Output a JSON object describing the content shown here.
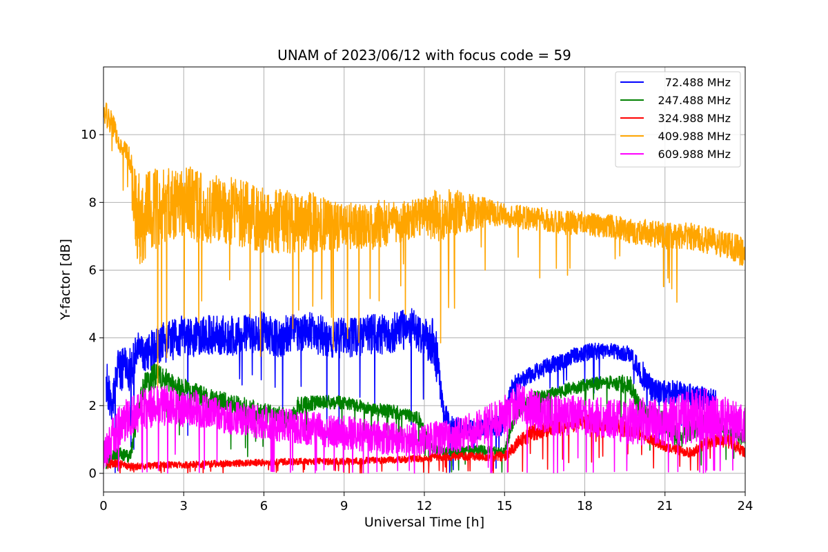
{
  "chart_data": {
    "type": "line",
    "title": "UNAM of 2023/06/12 with focus code = 59",
    "xlabel": "Universal Time [h]",
    "ylabel": "Y-factor [dB]",
    "xlim": [
      0,
      24
    ],
    "ylim": [
      -0.55,
      12
    ],
    "xticks": [
      0,
      3,
      6,
      9,
      12,
      15,
      18,
      21,
      24
    ],
    "yticks": [
      0,
      2,
      4,
      6,
      8,
      10
    ],
    "grid": true,
    "legend_position": "top-right",
    "series": [
      {
        "name": "72.488 MHz",
        "color": "#0000ff",
        "x": [
          0.1,
          0.3,
          0.5,
          0.8,
          1.0,
          1.3,
          1.6,
          2.0,
          2.5,
          3.0,
          3.5,
          4.0,
          4.5,
          5.0,
          5.5,
          6.0,
          6.5,
          7.0,
          7.5,
          8.0,
          8.5,
          9.0,
          9.5,
          10.0,
          10.5,
          11.0,
          11.5,
          12.0,
          12.4,
          12.7,
          13.0,
          13.5,
          14.0,
          14.5,
          14.9,
          15.3,
          15.7,
          16.2,
          16.7,
          17.2,
          17.7,
          18.2,
          18.7,
          19.2,
          19.7,
          20.1,
          20.5,
          21.0,
          21.5,
          22.0,
          22.5,
          22.9
        ],
        "mean": [
          2.6,
          2.0,
          2.9,
          3.2,
          3.0,
          3.7,
          3.5,
          3.8,
          3.9,
          4.1,
          4.0,
          4.1,
          4.1,
          4.0,
          4.1,
          4.2,
          4.0,
          4.1,
          4.2,
          4.1,
          4.0,
          4.0,
          4.0,
          4.1,
          4.1,
          4.2,
          4.3,
          4.1,
          3.8,
          1.8,
          1.4,
          1.3,
          1.3,
          1.4,
          1.4,
          2.6,
          2.8,
          3.0,
          3.2,
          3.3,
          3.5,
          3.6,
          3.6,
          3.6,
          3.5,
          3.0,
          2.5,
          2.4,
          2.4,
          2.3,
          2.2,
          2.1
        ],
        "amp": [
          0.8,
          0.5,
          0.7,
          0.6,
          0.7,
          0.5,
          0.6,
          0.6,
          0.6,
          0.6,
          0.6,
          0.6,
          0.6,
          0.6,
          0.6,
          0.6,
          0.6,
          0.6,
          0.6,
          0.6,
          0.6,
          0.6,
          0.6,
          0.6,
          0.6,
          0.6,
          0.6,
          0.6,
          0.8,
          0.4,
          0.3,
          0.3,
          0.3,
          0.3,
          0.3,
          0.25,
          0.25,
          0.25,
          0.25,
          0.25,
          0.25,
          0.25,
          0.25,
          0.25,
          0.25,
          0.4,
          0.4,
          0.35,
          0.35,
          0.35,
          0.35,
          0.35
        ]
      },
      {
        "name": "247.488 MHz",
        "color": "#008000",
        "x": [
          0.1,
          0.5,
          1.0,
          1.3,
          1.5,
          2.0,
          2.5,
          3.0,
          4.0,
          5.0,
          6.0,
          6.5,
          7.0,
          7.3,
          8.0,
          9.0,
          10.0,
          11.0,
          11.8,
          12.3,
          13.0,
          14.0,
          15.0,
          15.4,
          16.0,
          16.5,
          17.0,
          18.0,
          19.0,
          19.7,
          20.0,
          20.5,
          21.0,
          21.5,
          22.0,
          22.5,
          23.0,
          23.5,
          24.0
        ],
        "mean": [
          0.3,
          0.6,
          0.5,
          1.8,
          2.6,
          2.9,
          2.7,
          2.5,
          2.2,
          2.0,
          1.8,
          1.7,
          1.6,
          2.0,
          2.1,
          2.1,
          1.9,
          1.8,
          1.6,
          0.7,
          0.6,
          0.7,
          0.6,
          1.8,
          2.2,
          2.3,
          2.4,
          2.6,
          2.7,
          2.6,
          2.0,
          1.8,
          1.5,
          1.0,
          1.3,
          1.5,
          1.4,
          1.2,
          1.1
        ],
        "amp": [
          0.2,
          0.2,
          0.2,
          0.3,
          0.4,
          0.4,
          0.3,
          0.3,
          0.3,
          0.3,
          0.3,
          0.3,
          0.3,
          0.3,
          0.2,
          0.2,
          0.2,
          0.2,
          0.2,
          0.15,
          0.15,
          0.15,
          0.15,
          0.3,
          0.2,
          0.2,
          0.2,
          0.2,
          0.2,
          0.3,
          0.3,
          0.3,
          0.3,
          0.3,
          0.3,
          0.3,
          0.3,
          0.3,
          0.3
        ]
      },
      {
        "name": "324.988 MHz",
        "color": "#ff0000",
        "x": [
          0.1,
          0.5,
          1.0,
          1.5,
          2.0,
          3.0,
          4.0,
          5.0,
          6.0,
          7.0,
          8.0,
          9.0,
          10.0,
          11.0,
          12.0,
          13.0,
          14.0,
          15.0,
          15.5,
          16.0,
          17.0,
          18.0,
          19.0,
          20.0,
          21.0,
          21.5,
          22.0,
          22.5,
          23.0,
          23.5,
          24.0
        ],
        "mean": [
          0.25,
          0.3,
          0.2,
          0.2,
          0.25,
          0.25,
          0.28,
          0.3,
          0.32,
          0.35,
          0.35,
          0.35,
          0.38,
          0.4,
          0.45,
          0.5,
          0.5,
          0.5,
          0.9,
          1.2,
          1.4,
          1.5,
          1.4,
          1.2,
          0.8,
          0.7,
          0.6,
          0.9,
          1.0,
          0.9,
          0.6
        ],
        "amp": [
          0.12,
          0.12,
          0.12,
          0.1,
          0.1,
          0.1,
          0.1,
          0.1,
          0.1,
          0.1,
          0.1,
          0.1,
          0.1,
          0.1,
          0.12,
          0.12,
          0.12,
          0.15,
          0.2,
          0.25,
          0.25,
          0.25,
          0.25,
          0.2,
          0.15,
          0.15,
          0.15,
          0.2,
          0.2,
          0.2,
          0.15
        ]
      },
      {
        "name": "409.988 MHz",
        "color": "#ffa500",
        "x": [
          0.0,
          0.2,
          0.4,
          0.6,
          0.8,
          1.0,
          1.1,
          1.3,
          1.6,
          2.0,
          2.5,
          3.0,
          3.5,
          4.0,
          4.5,
          5.0,
          5.5,
          6.0,
          6.5,
          7.0,
          7.5,
          8.0,
          8.5,
          9.0,
          9.5,
          10.0,
          10.5,
          11.0,
          11.5,
          12.0,
          12.5,
          13.0,
          13.5,
          14.0,
          14.5,
          15.0,
          15.5,
          16.0,
          16.5,
          17.0,
          17.5,
          18.0,
          18.5,
          19.0,
          19.5,
          20.0,
          20.5,
          21.0,
          21.5,
          22.0,
          22.5,
          23.0,
          23.5,
          24.0
        ],
        "mean": [
          10.6,
          10.5,
          10.2,
          9.7,
          9.5,
          9.2,
          8.2,
          7.5,
          7.6,
          7.8,
          7.9,
          8.0,
          7.9,
          7.8,
          7.8,
          7.7,
          7.6,
          7.5,
          7.5,
          7.4,
          7.4,
          7.4,
          7.3,
          7.3,
          7.3,
          7.3,
          7.4,
          7.4,
          7.5,
          7.6,
          7.6,
          7.7,
          7.7,
          7.7,
          7.7,
          7.6,
          7.6,
          7.5,
          7.5,
          7.4,
          7.4,
          7.4,
          7.3,
          7.3,
          7.2,
          7.1,
          7.1,
          7.0,
          7.0,
          7.0,
          6.9,
          6.8,
          6.7,
          6.5
        ],
        "amp": [
          0.4,
          0.4,
          0.3,
          0.2,
          0.3,
          0.4,
          1.2,
          1.4,
          1.3,
          1.2,
          1.1,
          1.1,
          1.1,
          1.0,
          1.0,
          1.0,
          1.0,
          1.0,
          1.0,
          0.9,
          0.9,
          0.9,
          0.8,
          0.7,
          0.7,
          0.7,
          0.7,
          0.6,
          0.6,
          0.6,
          0.8,
          0.7,
          0.6,
          0.5,
          0.4,
          0.35,
          0.35,
          0.35,
          0.35,
          0.35,
          0.35,
          0.35,
          0.35,
          0.35,
          0.35,
          0.4,
          0.4,
          0.4,
          0.4,
          0.4,
          0.4,
          0.4,
          0.4,
          0.5
        ]
      },
      {
        "name": "609.988 MHz",
        "color": "#ff00ff",
        "x": [
          0.0,
          0.3,
          0.6,
          1.0,
          1.5,
          2.0,
          2.5,
          3.0,
          3.5,
          4.0,
          5.0,
          6.0,
          7.0,
          8.0,
          9.0,
          10.0,
          11.0,
          12.0,
          13.0,
          14.0,
          15.0,
          15.5,
          16.0,
          17.0,
          18.0,
          19.0,
          20.0,
          20.5,
          21.0,
          21.5,
          22.0,
          22.5,
          23.0,
          23.5,
          24.0
        ],
        "mean": [
          0.5,
          1.0,
          1.4,
          1.7,
          1.9,
          2.0,
          2.0,
          1.9,
          1.9,
          1.8,
          1.6,
          1.5,
          1.4,
          1.3,
          1.2,
          1.1,
          1.0,
          1.0,
          1.1,
          1.3,
          1.7,
          2.1,
          1.9,
          1.7,
          1.7,
          1.6,
          1.5,
          1.6,
          1.5,
          1.6,
          1.7,
          1.8,
          1.6,
          1.5,
          1.4
        ],
        "amp": [
          0.4,
          0.6,
          0.6,
          0.6,
          0.6,
          0.6,
          0.6,
          0.55,
          0.55,
          0.5,
          0.5,
          0.5,
          0.5,
          0.5,
          0.5,
          0.5,
          0.5,
          0.5,
          0.5,
          0.55,
          0.6,
          0.6,
          0.6,
          0.6,
          0.6,
          0.6,
          0.7,
          0.7,
          0.7,
          0.8,
          0.8,
          0.8,
          0.7,
          0.7,
          0.7
        ]
      }
    ]
  }
}
